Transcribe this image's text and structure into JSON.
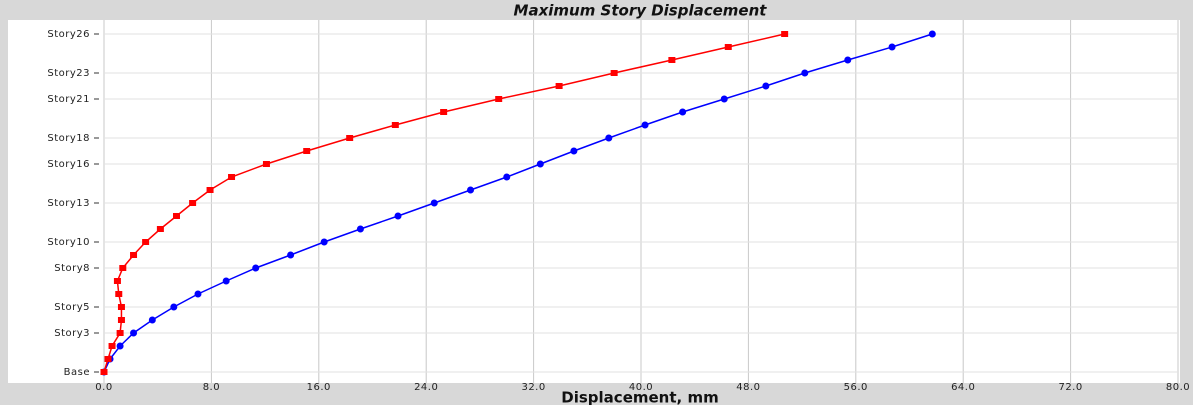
{
  "chart_data": {
    "type": "line",
    "orientation": "horizontal",
    "title": "Maximum Story Displacement",
    "xlabel": "Displacement, mm",
    "categories": [
      "Base",
      null,
      null,
      "Story3",
      null,
      "Story5",
      null,
      null,
      "Story8",
      null,
      "Story10",
      null,
      null,
      "Story13",
      null,
      null,
      "Story16",
      null,
      "Story18",
      null,
      null,
      "Story21",
      null,
      "Story23",
      null,
      null,
      "Story26"
    ],
    "series": [
      {
        "color": "#0000ff",
        "marker": "circle",
        "values": [
          0,
          0.45,
          1.2,
          2.2,
          3.6,
          5.2,
          7.0,
          9.1,
          11.3,
          13.9,
          16.4,
          19.1,
          21.9,
          24.6,
          27.3,
          30.0,
          32.5,
          35.0,
          37.6,
          40.3,
          43.1,
          46.2,
          49.3,
          52.2,
          55.4,
          58.7,
          61.7
        ]
      },
      {
        "color": "#ff0000",
        "marker": "square",
        "values": [
          0,
          0.3,
          0.6,
          1.2,
          1.3,
          1.3,
          1.1,
          1.0,
          1.4,
          2.2,
          3.1,
          4.2,
          5.4,
          6.6,
          7.9,
          9.5,
          12.1,
          15.1,
          18.3,
          21.7,
          25.3,
          29.4,
          33.9,
          38.0,
          42.3,
          46.5,
          50.7
        ]
      }
    ],
    "xlim": [
      0,
      80
    ],
    "xticks": [
      {
        "value": 0,
        "label": "0.0"
      },
      {
        "value": 8,
        "label": "8.0"
      },
      {
        "value": 16,
        "label": "16.0"
      },
      {
        "value": 24,
        "label": "24.0"
      },
      {
        "value": 32,
        "label": "32.0"
      },
      {
        "value": 40,
        "label": "40.0"
      },
      {
        "value": 48,
        "label": "48.0"
      },
      {
        "value": 56,
        "label": "56.0"
      },
      {
        "value": 64,
        "label": "64.0"
      },
      {
        "value": 72,
        "label": "72.0"
      },
      {
        "value": 80,
        "label": "80.0"
      }
    ],
    "grid": true
  }
}
